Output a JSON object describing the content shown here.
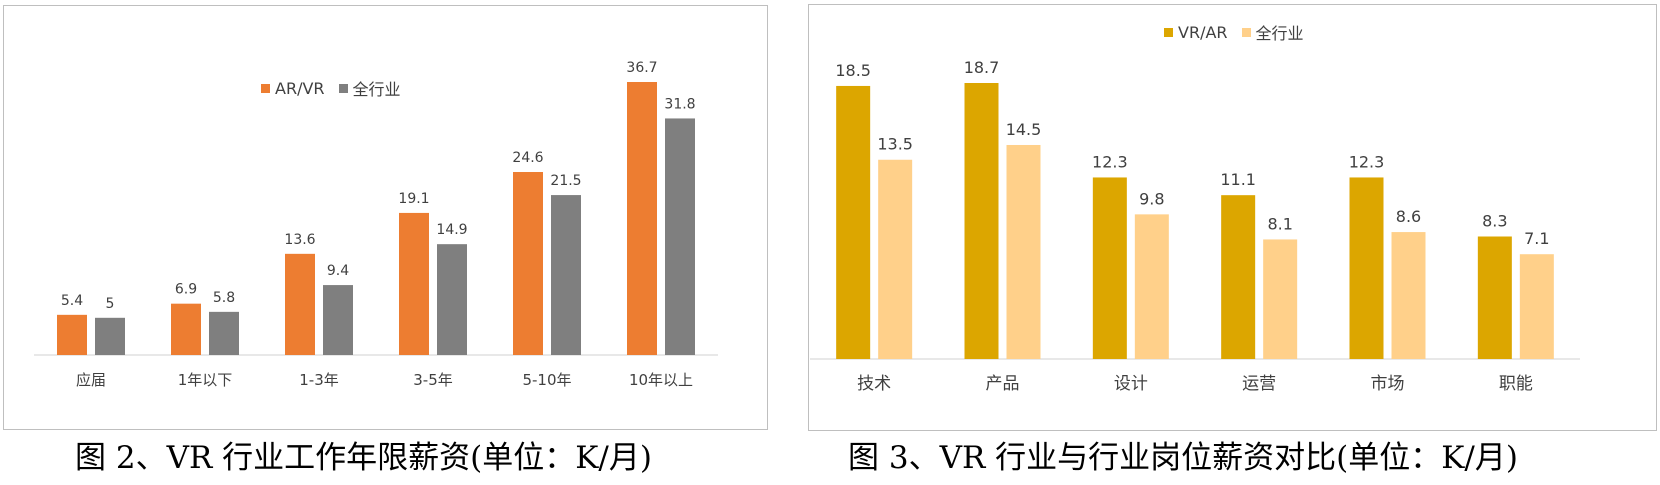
{
  "chart_data": [
    {
      "type": "bar",
      "categories": [
        "应届",
        "1年以下",
        "1-3年",
        "3-5年",
        "5-10年",
        "10年以上"
      ],
      "series": [
        {
          "name": "AR/VR",
          "values": [
            5.4,
            6.9,
            13.6,
            19.1,
            24.6,
            36.7
          ],
          "color": "#ed7d31"
        },
        {
          "name": "全行业",
          "values": [
            5,
            5.8,
            9.4,
            14.9,
            21.5,
            31.8
          ],
          "color": "#7f7f7f"
        }
      ],
      "ylim": [
        0,
        36.7
      ],
      "legend": "top-center",
      "grid": false,
      "caption": "图 2、VR 行业工作年限薪资(单位：K/月)"
    },
    {
      "type": "bar",
      "categories": [
        "技术",
        "产品",
        "设计",
        "运营",
        "市场",
        "职能"
      ],
      "series": [
        {
          "name": "VR/AR",
          "values": [
            18.5,
            18.7,
            12.3,
            11.1,
            12.3,
            8.3
          ],
          "color": "#dca600"
        },
        {
          "name": "全行业",
          "values": [
            13.5,
            14.5,
            9.8,
            8.1,
            8.6,
            7.1
          ],
          "color": "#ffd08a"
        }
      ],
      "ylim": [
        0,
        18.7
      ],
      "legend": "top-center",
      "grid": false,
      "caption": "图 3、VR 行业与行业岗位薪资对比(单位：K/月)"
    }
  ]
}
